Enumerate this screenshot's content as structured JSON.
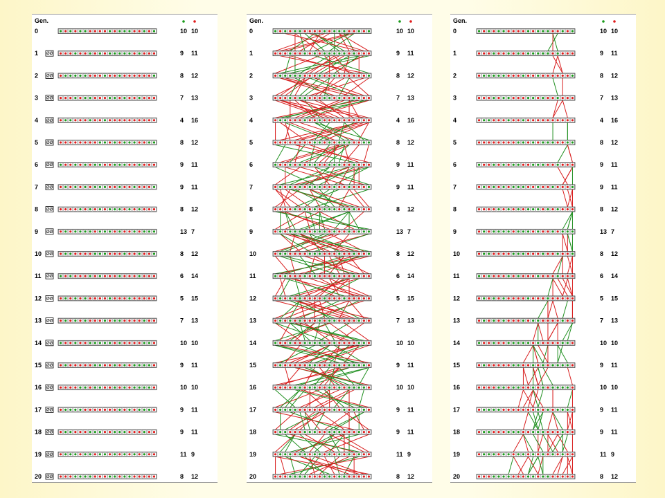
{
  "header_label": "Gen.",
  "legend_green_color": "#1a9a1a",
  "legend_red_color": "#e01c1c",
  "colors": {
    "green": "#1a9a1a",
    "red": "#e01c1c",
    "line_green": "#1f8f1f",
    "line_red": "#d81e1e"
  },
  "generations": [
    "0",
    "1",
    "2",
    "3",
    "4",
    "5",
    "6",
    "7",
    "8",
    "9",
    "10",
    "11",
    "12",
    "13",
    "14",
    "15",
    "16",
    "17",
    "18",
    "19",
    "20"
  ],
  "counts": [
    [
      "10",
      "10"
    ],
    [
      "9",
      "11"
    ],
    [
      "8",
      "12"
    ],
    [
      "7",
      "13"
    ],
    [
      "4",
      "16"
    ],
    [
      "8",
      "12"
    ],
    [
      "9",
      "11"
    ],
    [
      "9",
      "11"
    ],
    [
      "8",
      "12"
    ],
    [
      "13",
      "7"
    ],
    [
      "8",
      "12"
    ],
    [
      "6",
      "14"
    ],
    [
      "5",
      "15"
    ],
    [
      "7",
      "13"
    ],
    [
      "10",
      "10"
    ],
    [
      "9",
      "11"
    ],
    [
      "10",
      "10"
    ],
    [
      "9",
      "11"
    ],
    [
      "9",
      "11"
    ],
    [
      "11",
      "9"
    ],
    [
      "8",
      "12"
    ]
  ],
  "row_icon": "chromosome-pair-icon",
  "panels": [
    {
      "id": "population-without-lineage"
    },
    {
      "id": "population-full-lineage"
    },
    {
      "id": "population-single-lineage"
    }
  ]
}
